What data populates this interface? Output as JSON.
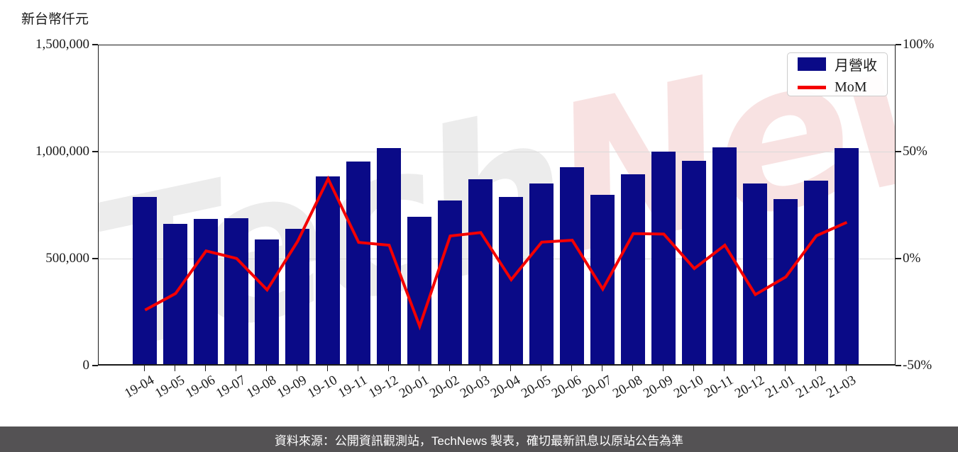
{
  "colors": {
    "bar": "#0A0A87",
    "line": "#F40000",
    "grid": "#D9D9D9",
    "spine": "#1A1A1A",
    "watermark_gray": "#ECECEC",
    "watermark_pink": "#F8E2E2",
    "source_bg": "#545254",
    "source_text": "#FFFFFF"
  },
  "watermark": {
    "left": "Tech",
    "right": "News"
  },
  "legend": {
    "bar_label": "月營收",
    "line_label": "MoM"
  },
  "source": {
    "text": "資料來源：公開資訊觀測站，TechNews 製表，確切最新訊息以原站公告為準"
  },
  "chart_data": {
    "type": "bar+line combo",
    "title": "",
    "categories": [
      "19-04",
      "19-05",
      "19-06",
      "19-07",
      "19-08",
      "19-09",
      "19-10",
      "19-11",
      "19-12",
      "20-01",
      "20-02",
      "20-03",
      "20-04",
      "20-05",
      "20-06",
      "20-07",
      "20-08",
      "20-09",
      "20-10",
      "20-11",
      "20-12",
      "21-01",
      "21-02",
      "21-03"
    ],
    "series": [
      {
        "name": "月營收",
        "type": "bar",
        "axis": "left",
        "values": [
          790000,
          664000,
          690000,
          693000,
          594000,
          644000,
          886000,
          956000,
          1019000,
          700000,
          776000,
          873000,
          790000,
          853000,
          929000,
          800000,
          896000,
          1002000,
          959000,
          1022000,
          853000,
          783000,
          869000,
          1019000
        ]
      },
      {
        "name": "MoM",
        "type": "line",
        "axis": "right",
        "values": [
          -23.7,
          -16.0,
          3.9,
          0.4,
          -14.3,
          8.4,
          37.6,
          7.9,
          6.6,
          -31.3,
          10.9,
          12.5,
          -9.5,
          8.0,
          8.9,
          -13.9,
          12.0,
          11.8,
          -4.3,
          6.6,
          -16.5,
          -8.2,
          11.0,
          17.3
        ]
      }
    ],
    "left_axis": {
      "unit_label": "新台幣仟元",
      "min": 0,
      "max": 1500000,
      "tick_values": [
        0,
        500000,
        1000000,
        1500000
      ],
      "tick_labels": [
        "0",
        "500,000",
        "1,000,000",
        "1,500,000"
      ]
    },
    "right_axis": {
      "min": -50,
      "max": 100,
      "tick_values": [
        -50,
        0,
        50,
        100
      ],
      "tick_labels": [
        "-50%",
        "0%",
        "50%",
        "100%"
      ]
    },
    "grid": "horizontal",
    "legend_position": "top-right",
    "xlabel_rotation_deg": 30
  }
}
